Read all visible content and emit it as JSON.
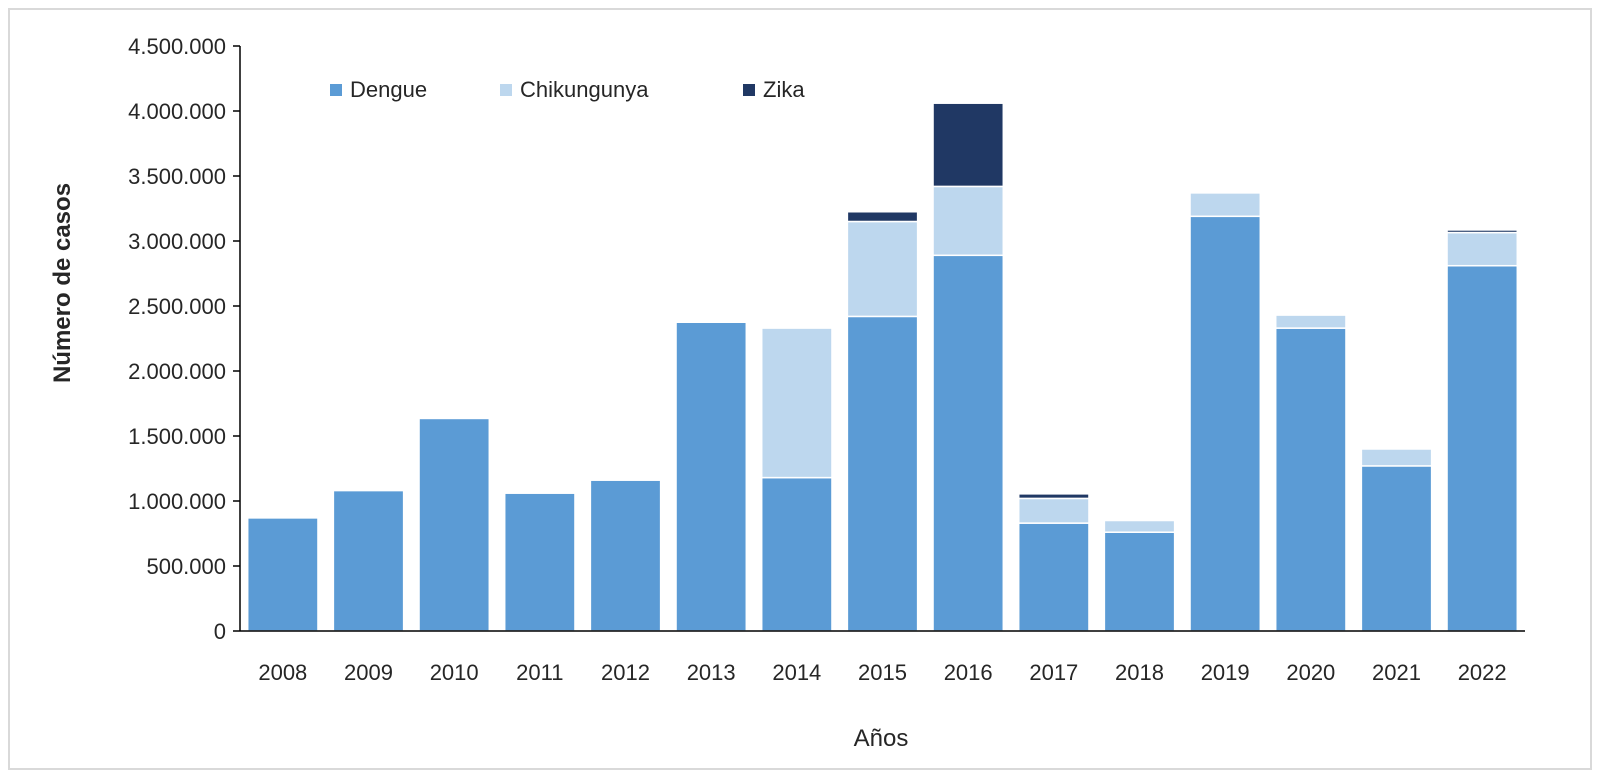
{
  "chart_data": {
    "type": "bar",
    "stacked": true,
    "categories": [
      "2008",
      "2009",
      "2010",
      "2011",
      "2012",
      "2013",
      "2014",
      "2015",
      "2016",
      "2017",
      "2018",
      "2019",
      "2020",
      "2021",
      "2022"
    ],
    "series": [
      {
        "name": "Dengue",
        "color": "#5b9bd5",
        "values": [
          870000,
          1080000,
          1635000,
          1060000,
          1160000,
          2375000,
          1180000,
          2420000,
          2890000,
          830000,
          760000,
          3190000,
          2330000,
          1270000,
          2810000
        ]
      },
      {
        "name": "Chikungunya",
        "color": "#bdd7ee",
        "values": [
          0,
          0,
          0,
          0,
          0,
          0,
          1150000,
          730000,
          530000,
          190000,
          90000,
          180000,
          100000,
          130000,
          255000
        ]
      },
      {
        "name": "Zika",
        "color": "#203864",
        "values": [
          0,
          0,
          0,
          0,
          0,
          0,
          0,
          75000,
          640000,
          35000,
          0,
          0,
          0,
          0,
          20000
        ]
      }
    ],
    "xlabel": "Años",
    "ylabel": "Número de casos",
    "ylim": [
      0,
      4500000
    ],
    "yticks": [
      0,
      500000,
      1000000,
      1500000,
      2000000,
      2500000,
      3000000,
      3500000,
      4000000,
      4500000
    ],
    "ytick_labels": [
      "0",
      "500.000",
      "1.000.000",
      "1.500.000",
      "2.000.000",
      "2.500.000",
      "3.000.000",
      "3.500.000",
      "4.000.000",
      "4.500.000"
    ],
    "legend_position": "top-left",
    "grid": false
  }
}
